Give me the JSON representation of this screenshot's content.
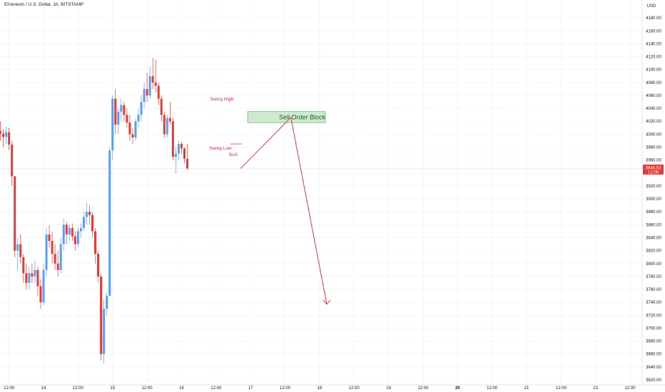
{
  "title": "Ethereum / U.S. Dollar, 1h, BITSTAMP",
  "currency": "USD",
  "colors": {
    "up": "#5b9cf6",
    "down": "#e53935",
    "grid": "#eef0f3",
    "order_block_fill": "#c8e6c9",
    "order_block_border": "#66bb6a",
    "arrow": "#e53935",
    "annotation": "#e02a4a"
  },
  "chart_data": {
    "type": "candlestick",
    "ylim": [
      3620,
      4200
    ],
    "yticks": [
      3620,
      3640,
      3660,
      3680,
      3700,
      3720,
      3740,
      3760,
      3780,
      3800,
      3820,
      3840,
      3860,
      3880,
      3900,
      3920,
      3940,
      3960,
      3980,
      4000,
      4020,
      4040,
      4060,
      4080,
      4100,
      4120,
      4140,
      4160,
      4180
    ],
    "x_ticks": [
      {
        "label": "12:00",
        "hour": -12
      },
      {
        "label": "14",
        "hour": 0
      },
      {
        "label": "12:00",
        "hour": 12
      },
      {
        "label": "15",
        "hour": 24
      },
      {
        "label": "12:00",
        "hour": 36
      },
      {
        "label": "16",
        "hour": 48
      },
      {
        "label": "12:00",
        "hour": 60
      },
      {
        "label": "17",
        "hour": 72
      },
      {
        "label": "12:00",
        "hour": 84
      },
      {
        "label": "18",
        "hour": 96
      },
      {
        "label": "12:00",
        "hour": 108
      },
      {
        "label": "19",
        "hour": 120
      },
      {
        "label": "12:00",
        "hour": 132
      },
      {
        "label": "20",
        "hour": 144
      },
      {
        "label": "12:00",
        "hour": 156
      },
      {
        "label": "21",
        "hour": 168
      },
      {
        "label": "12:00",
        "hour": 180
      },
      {
        "label": "22",
        "hour": 192
      },
      {
        "label": "12:00",
        "hour": 204
      }
    ],
    "candles_open": 4005,
    "candles": [
      [
        4020,
        3990,
        4001
      ],
      [
        4008,
        3980,
        3996
      ],
      [
        4012,
        3985,
        4003
      ],
      [
        4010,
        3975,
        3984
      ],
      [
        3990,
        3920,
        3935
      ],
      [
        3930,
        3810,
        3820
      ],
      [
        3840,
        3790,
        3830
      ],
      [
        3845,
        3800,
        3810
      ],
      [
        3815,
        3770,
        3785
      ],
      [
        3800,
        3760,
        3770
      ],
      [
        3795,
        3760,
        3785
      ],
      [
        3800,
        3770,
        3780
      ],
      [
        3805,
        3770,
        3790
      ],
      [
        3795,
        3750,
        3765
      ],
      [
        3775,
        3730,
        3740
      ],
      [
        3800,
        3735,
        3790
      ],
      [
        3855,
        3780,
        3845
      ],
      [
        3860,
        3825,
        3835
      ],
      [
        3850,
        3800,
        3815
      ],
      [
        3830,
        3790,
        3800
      ],
      [
        3820,
        3780,
        3790
      ],
      [
        3840,
        3785,
        3830
      ],
      [
        3870,
        3820,
        3860
      ],
      [
        3865,
        3830,
        3845
      ],
      [
        3860,
        3835,
        3855
      ],
      [
        3862,
        3835,
        3842
      ],
      [
        3850,
        3820,
        3830
      ],
      [
        3855,
        3825,
        3850
      ],
      [
        3862,
        3840,
        3855
      ],
      [
        3880,
        3850,
        3872
      ],
      [
        3895,
        3860,
        3880
      ],
      [
        3890,
        3860,
        3875
      ],
      [
        3880,
        3840,
        3850
      ],
      [
        3855,
        3800,
        3815
      ],
      [
        3820,
        3770,
        3780
      ],
      [
        3785,
        3650,
        3660
      ],
      [
        3745,
        3645,
        3730
      ],
      [
        3755,
        3720,
        3750
      ],
      [
        3980,
        3750,
        3975
      ],
      [
        4060,
        3960,
        4055
      ],
      [
        4070,
        4000,
        4015
      ],
      [
        4040,
        4000,
        4035
      ],
      [
        4055,
        4020,
        4045
      ],
      [
        4050,
        4020,
        4030
      ],
      [
        4040,
        4010,
        4018
      ],
      [
        4030,
        3990,
        4000
      ],
      [
        4010,
        3985,
        3995
      ],
      [
        4025,
        3990,
        4020
      ],
      [
        4040,
        4010,
        4030
      ],
      [
        4060,
        4020,
        4050
      ],
      [
        4080,
        4040,
        4070
      ],
      [
        4095,
        4050,
        4060
      ],
      [
        4105,
        4055,
        4090
      ],
      [
        4118,
        4070,
        4080
      ],
      [
        4115,
        4065,
        4075
      ],
      [
        4080,
        4045,
        4055
      ],
      [
        4060,
        4020,
        4030
      ],
      [
        4035,
        3995,
        4000
      ],
      [
        4030,
        3995,
        4025
      ],
      [
        4050,
        4015,
        4020
      ],
      [
        4025,
        3960,
        3965
      ],
      [
        3980,
        3940,
        3970
      ],
      [
        3990,
        3960,
        3985
      ],
      [
        3988,
        3970,
        3978
      ],
      [
        3980,
        3955,
        3962
      ],
      [
        3985,
        3945,
        3947
      ]
    ],
    "current_price": "3946.53",
    "countdown": "12:06",
    "current_price_value": 3946.53,
    "order_block": {
      "label": "Sell Order Block",
      "top": 4035,
      "bottom": 4018,
      "start_hour": 71,
      "end_hour": 98
    },
    "projection_path": [
      {
        "hour": 68.5,
        "price": 3947
      },
      {
        "hour": 86,
        "price": 4026
      },
      {
        "hour": 98.5,
        "price": 3737
      }
    ],
    "annotations": [
      {
        "text": "Swing High",
        "hour": 62,
        "price": 4052
      },
      {
        "text": "Swing Low",
        "hour": 61.5,
        "price": 3976
      },
      {
        "text": "BoS",
        "hour": 66,
        "price": 3966
      }
    ],
    "bos_marker": {
      "price": 3985,
      "start_hour": 65,
      "end_hour": 69
    }
  }
}
